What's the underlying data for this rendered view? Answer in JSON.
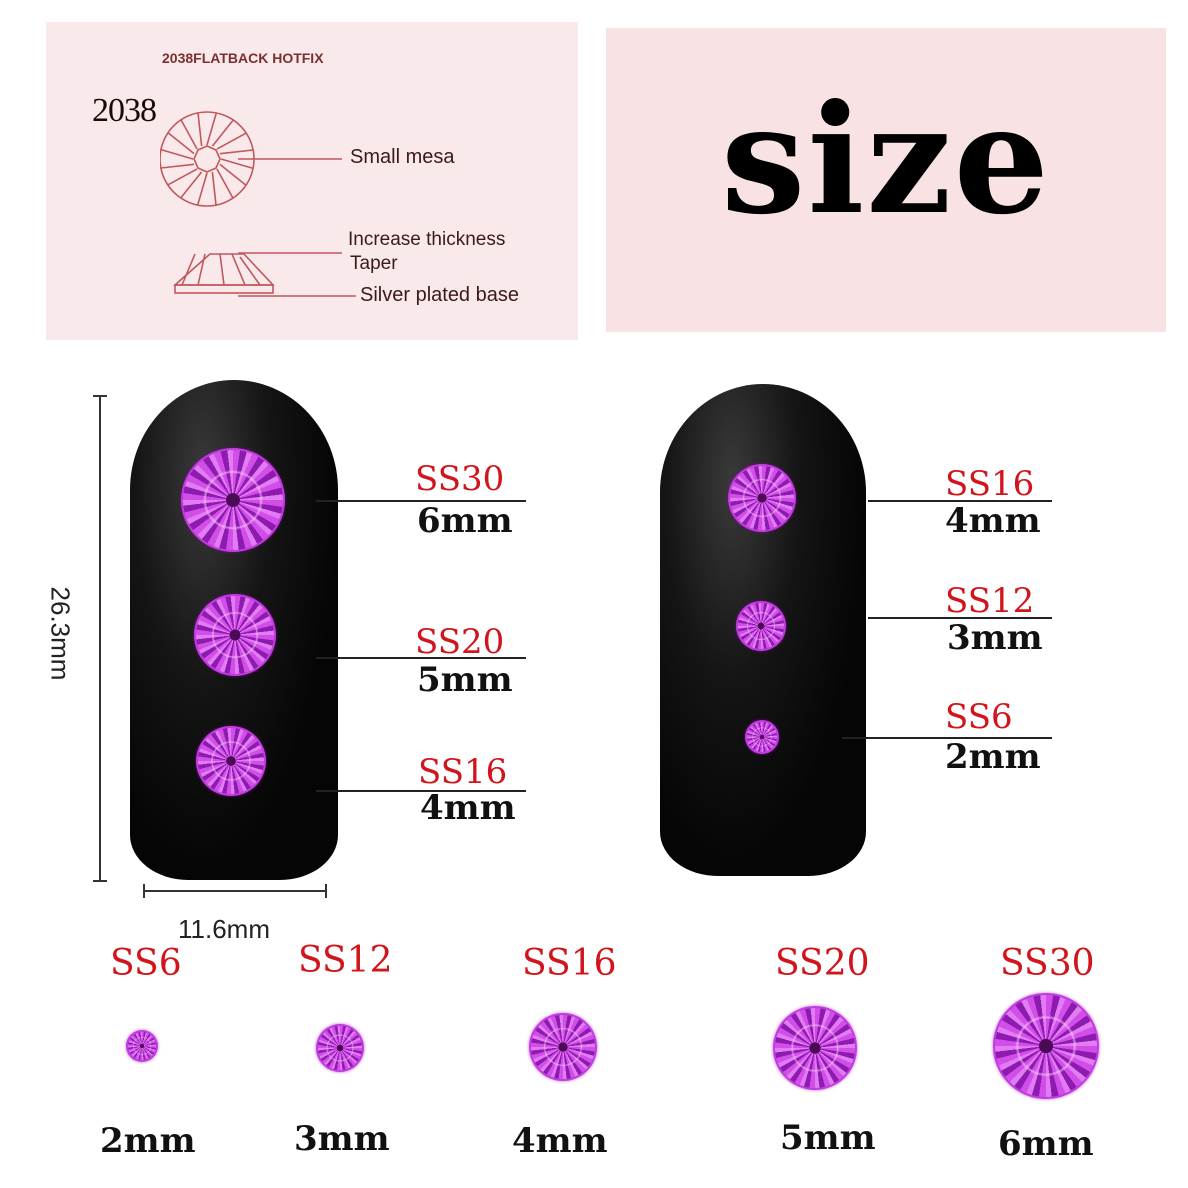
{
  "spec_panel": {
    "title": "2038FLATBACK HOTFIX",
    "model": "2038",
    "callouts": [
      "Small mesa",
      "Increase thickness",
      "Taper",
      "Silver plated base"
    ],
    "accent_color": "#c0595e"
  },
  "size_panel": {
    "heading": "size"
  },
  "dimensions": {
    "height": "26.3mm",
    "width": "11.6mm"
  },
  "left_nail": [
    {
      "code": "SS30",
      "mm": "6mm"
    },
    {
      "code": "SS20",
      "mm": "5mm"
    },
    {
      "code": "SS16",
      "mm": "4mm"
    }
  ],
  "right_nail": [
    {
      "code": "SS16",
      "mm": "4mm"
    },
    {
      "code": "SS12",
      "mm": "3mm"
    },
    {
      "code": "SS6",
      "mm": "2mm"
    }
  ],
  "size_row": [
    {
      "code": "SS6",
      "mm": "2mm"
    },
    {
      "code": "SS12",
      "mm": "3mm"
    },
    {
      "code": "SS16",
      "mm": "4mm"
    },
    {
      "code": "SS20",
      "mm": "5mm"
    },
    {
      "code": "SS30",
      "mm": "6mm"
    }
  ],
  "colors": {
    "label_red": "#d0161c",
    "gem": "#b030d0",
    "panel": "#f9e9ea"
  }
}
